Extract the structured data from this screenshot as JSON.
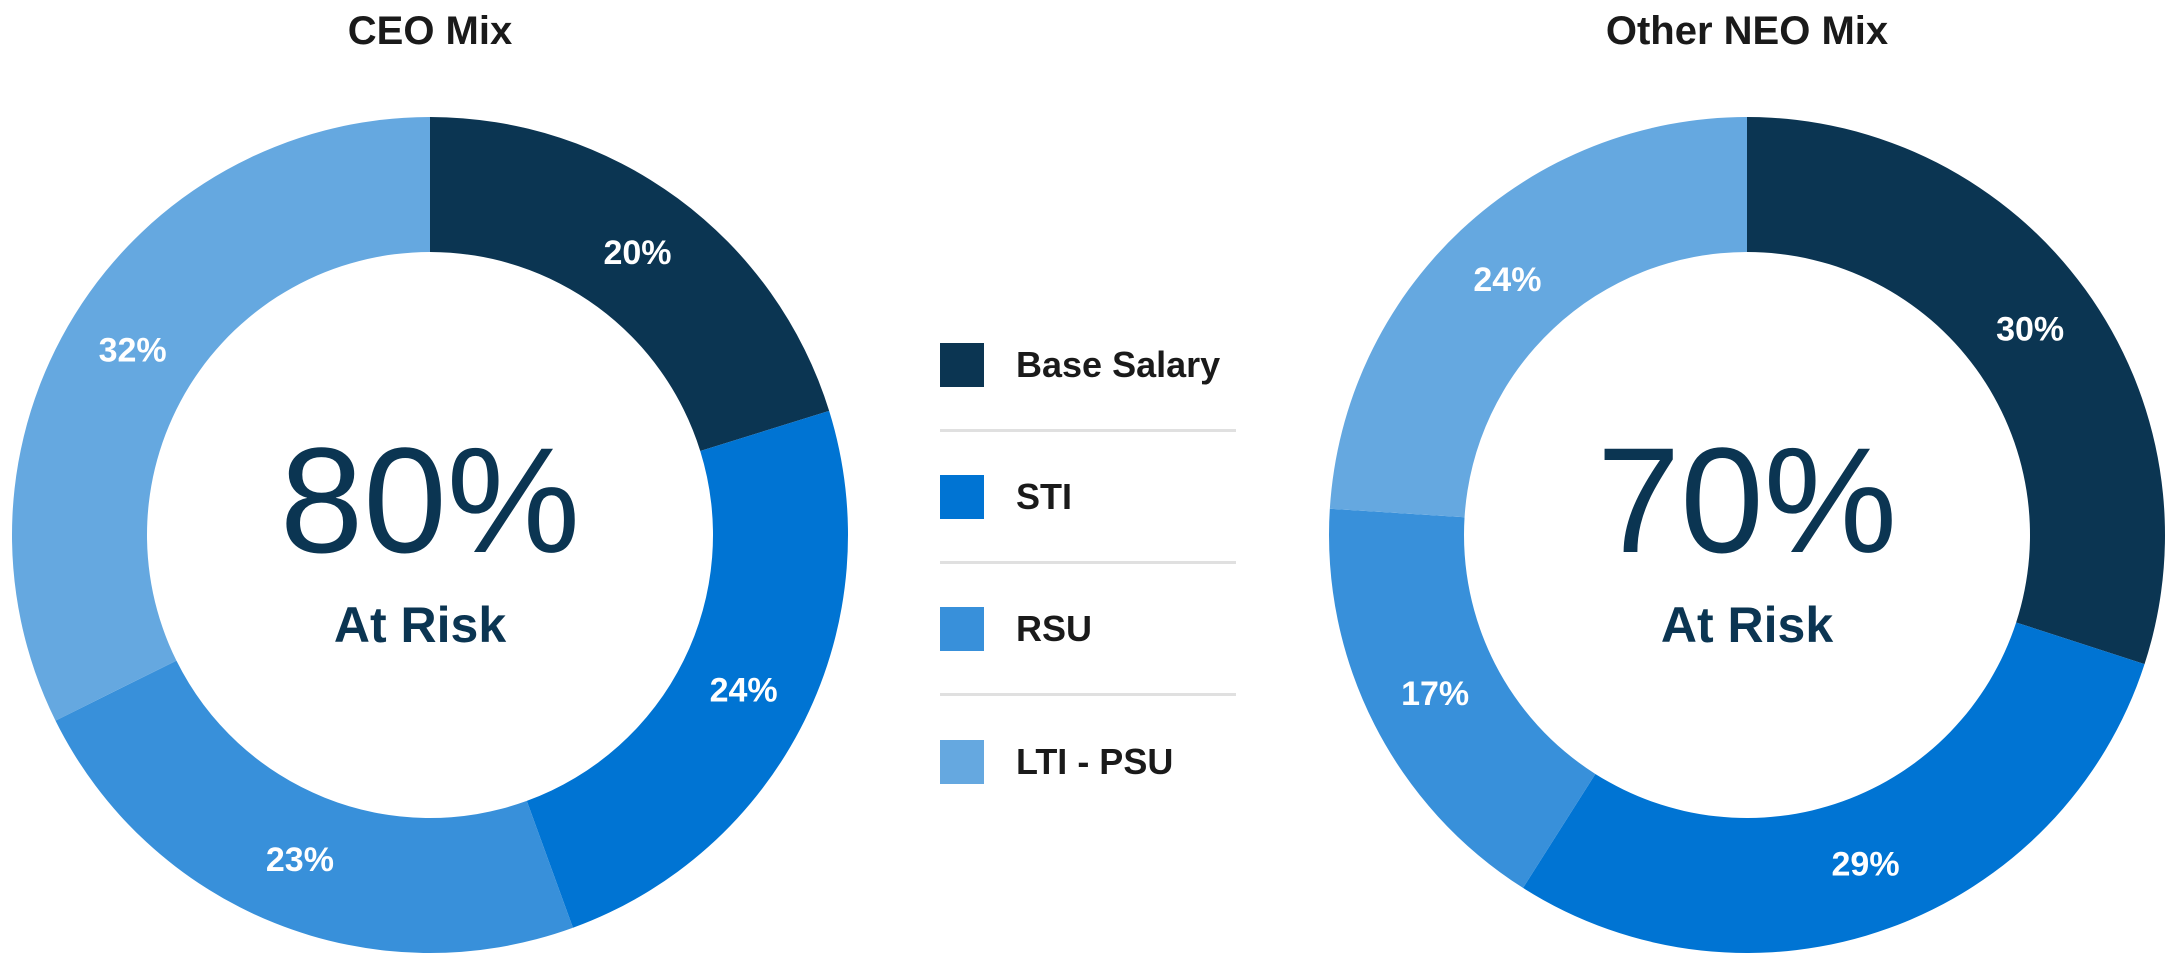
{
  "legend": {
    "items": [
      {
        "label": "Base Salary",
        "color": "#0b3552"
      },
      {
        "label": "STI",
        "color": "#0074d3"
      },
      {
        "label": "RSU",
        "color": "#3890da"
      },
      {
        "label": "LTI - PSU",
        "color": "#65a8e0"
      }
    ]
  },
  "chart_data": [
    {
      "type": "pie",
      "title": "CEO Mix",
      "categories": [
        "Base Salary",
        "STI",
        "RSU",
        "LTI - PSU"
      ],
      "values": [
        20,
        24,
        23,
        32
      ],
      "value_labels": [
        "20%",
        "24%",
        "23%",
        "32%"
      ],
      "colors": [
        "#0b3552",
        "#0074d3",
        "#3890da",
        "#65a8e0"
      ],
      "center_value": "80%",
      "center_label": "At Risk"
    },
    {
      "type": "pie",
      "title": "Other NEO Mix",
      "categories": [
        "Base Salary",
        "STI",
        "RSU",
        "LTI - PSU"
      ],
      "values": [
        30,
        29,
        17,
        24
      ],
      "value_labels": [
        "30%",
        "29%",
        "17%",
        "24%"
      ],
      "colors": [
        "#0b3552",
        "#0074d3",
        "#3890da",
        "#65a8e0"
      ],
      "center_value": "70%",
      "center_label": "At Risk"
    }
  ]
}
